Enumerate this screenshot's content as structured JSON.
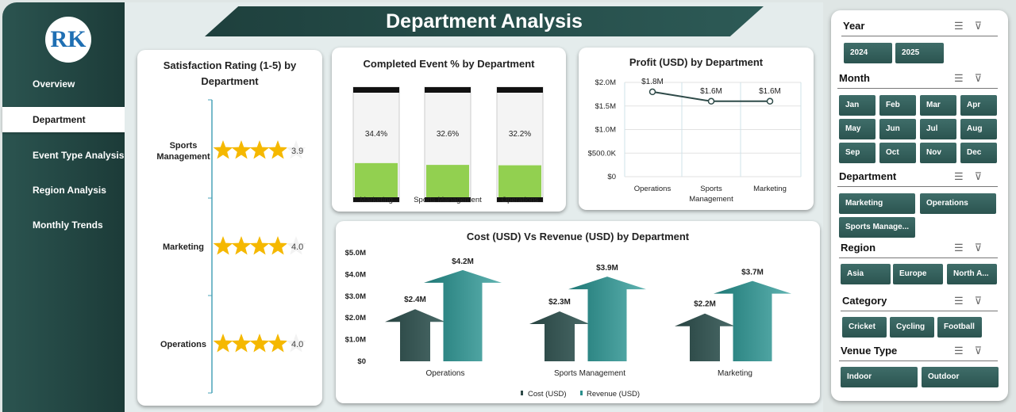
{
  "title": "Department Analysis",
  "logo_text": "RK",
  "nav": [
    "Overview",
    "Department",
    "Event Type Analysis",
    "Region Analysis",
    "Monthly Trends"
  ],
  "active_nav": "Department",
  "slicers": {
    "year": {
      "label": "Year",
      "items": [
        "2024",
        "2025"
      ]
    },
    "month": {
      "label": "Month",
      "items": [
        "Jan",
        "Feb",
        "Mar",
        "Apr",
        "May",
        "Jun",
        "Jul",
        "Aug",
        "Sep",
        "Oct",
        "Nov",
        "Dec"
      ]
    },
    "department": {
      "label": "Department",
      "items": [
        "Marketing",
        "Operations",
        "Sports Manage..."
      ]
    },
    "region": {
      "label": "Region",
      "items": [
        "Asia",
        "Europe",
        "North A..."
      ]
    },
    "category": {
      "label": "Category",
      "items": [
        "Cricket",
        "Cycling",
        "Football"
      ]
    },
    "venue": {
      "label": "Venue Type",
      "items": [
        "Indoor",
        "Outdoor"
      ]
    }
  },
  "colors": {
    "gold": "#f5b800",
    "green": "#92d050",
    "teal": "#2a8f8c",
    "dark": "#2e4a48"
  },
  "chart_data": [
    {
      "type": "bar",
      "title": "Satisfaction Rating (1-5) by Department",
      "categories": [
        "Sports Management",
        "Marketing",
        "Operations"
      ],
      "values": [
        3.9,
        4.0,
        4.0
      ],
      "labels": [
        "3.9",
        "4.0",
        "4.0"
      ],
      "max": 5
    },
    {
      "type": "bar",
      "title": "Completed Event % by Department",
      "categories": [
        "Marketing",
        "Sports Management",
        "Operations"
      ],
      "values": [
        34.4,
        32.6,
        32.2
      ],
      "labels": [
        "34.4%",
        "32.6%",
        "32.2%"
      ]
    },
    {
      "type": "line",
      "title": "Profit (USD) by Department",
      "categories": [
        "Operations",
        "Sports Management",
        "Marketing"
      ],
      "values": [
        1.8,
        1.6,
        1.6
      ],
      "labels": [
        "$1.8M",
        "$1.6M",
        "$1.6M"
      ],
      "yticks": [
        "$0",
        "$500.0K",
        "$1.0M",
        "$1.5M",
        "$2.0M"
      ],
      "ylim": [
        0,
        2.0
      ],
      "grid": true
    },
    {
      "type": "bar",
      "title": "Cost (USD) Vs Revenue (USD) by Department",
      "categories": [
        "Operations",
        "Sports Management",
        "Marketing"
      ],
      "series": [
        {
          "name": "Cost (USD)",
          "values": [
            2.4,
            2.3,
            2.2
          ],
          "labels": [
            "$2.4M",
            "$2.3M",
            "$2.2M"
          ]
        },
        {
          "name": "Revenue (USD)",
          "values": [
            4.2,
            3.9,
            3.7
          ],
          "labels": [
            "$4.2M",
            "$3.9M",
            "$3.7M"
          ]
        }
      ],
      "yticks": [
        "$0",
        "$1.0M",
        "$2.0M",
        "$3.0M",
        "$4.0M",
        "$5.0M"
      ],
      "ylim": [
        0,
        5
      ],
      "legend": "bottom"
    }
  ]
}
